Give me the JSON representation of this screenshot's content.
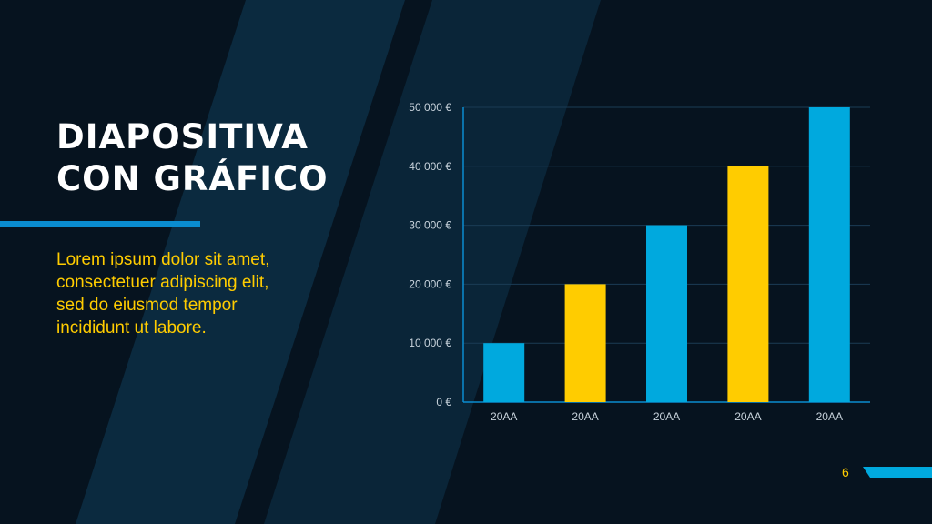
{
  "slide": {
    "title_line1": "DIAPOSITIVA",
    "title_line2": "CON GRÁFICO",
    "body": "Lorem ipsum dolor sit amet, consectetuer adipiscing elit, sed do eiusmod tempor incididunt ut labore.",
    "page_number": "6"
  },
  "colors": {
    "background": "#06131f",
    "panel": "#0c2a40",
    "accent_blue": "#00a9de",
    "accent_yellow": "#ffcc00",
    "title": "#ffffff"
  },
  "chart_data": {
    "type": "bar",
    "categories": [
      "20AA",
      "20AA",
      "20AA",
      "20AA",
      "20AA"
    ],
    "values": [
      10000,
      20000,
      30000,
      40000,
      50000
    ],
    "bar_colors": [
      "#00a9de",
      "#ffcc00",
      "#00a9de",
      "#ffcc00",
      "#00a9de"
    ],
    "ylim": [
      0,
      50000
    ],
    "yticks": [
      "0 €",
      "10 000 €",
      "20 000 €",
      "30 000 €",
      "40 000 €",
      "50 000 €"
    ],
    "grid": true,
    "title": "",
    "xlabel": "",
    "ylabel": ""
  }
}
